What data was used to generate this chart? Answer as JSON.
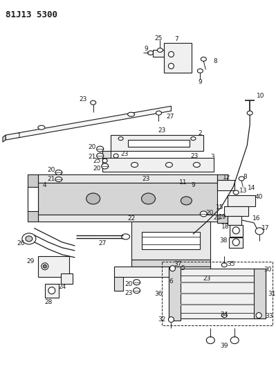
{
  "title": "81J13 5300",
  "bg_color": "#ffffff",
  "line_color": "#1a1a1a",
  "text_color": "#1a1a1a",
  "figsize": [
    3.99,
    5.33
  ],
  "dpi": 100
}
